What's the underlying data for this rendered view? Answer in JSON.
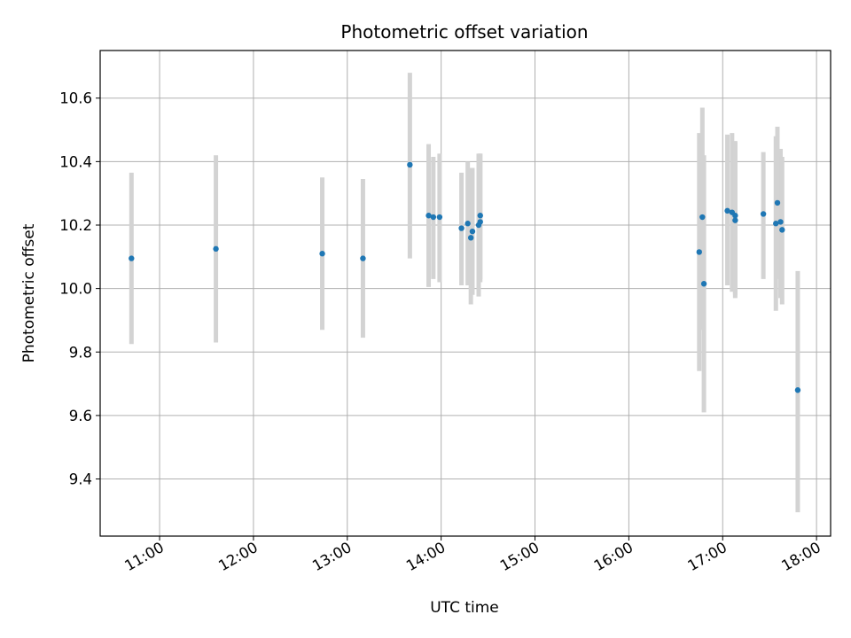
{
  "chart_data": {
    "type": "scatter",
    "title": "Photometric offset variation",
    "xlabel": "UTC time",
    "ylabel": "Photometric offset",
    "x_ticks": [
      "11:00",
      "12:00",
      "13:00",
      "14:00",
      "15:00",
      "16:00",
      "17:00",
      "18:00"
    ],
    "y_ticks": [
      "9.4",
      "9.6",
      "9.8",
      "10.0",
      "10.2",
      "10.4",
      "10.6"
    ],
    "xlim": [
      "10:22",
      "18:09"
    ],
    "ylim": [
      9.22,
      10.75
    ],
    "grid": true,
    "colors": {
      "points": "#1f77b4",
      "errorbars": "#d3d3d3",
      "grid": "#b0b0b0"
    },
    "points": [
      {
        "x": "10:42",
        "y": 10.095,
        "ylo": 9.825,
        "yhi": 10.365
      },
      {
        "x": "11:36",
        "y": 10.125,
        "ylo": 9.83,
        "yhi": 10.42
      },
      {
        "x": "12:44",
        "y": 10.11,
        "ylo": 9.87,
        "yhi": 10.35
      },
      {
        "x": "13:10",
        "y": 10.095,
        "ylo": 9.845,
        "yhi": 10.345
      },
      {
        "x": "13:40",
        "y": 10.39,
        "ylo": 10.095,
        "yhi": 10.68
      },
      {
        "x": "13:52",
        "y": 10.23,
        "ylo": 10.005,
        "yhi": 10.455
      },
      {
        "x": "13:55",
        "y": 10.225,
        "ylo": 10.03,
        "yhi": 10.415
      },
      {
        "x": "13:59",
        "y": 10.225,
        "ylo": 10.02,
        "yhi": 10.425
      },
      {
        "x": "14:13",
        "y": 10.19,
        "ylo": 10.01,
        "yhi": 10.365
      },
      {
        "x": "14:17",
        "y": 10.205,
        "ylo": 10.01,
        "yhi": 10.4
      },
      {
        "x": "14:19",
        "y": 10.16,
        "ylo": 9.95,
        "yhi": 10.38
      },
      {
        "x": "14:20",
        "y": 10.18,
        "ylo": 9.98,
        "yhi": 10.38
      },
      {
        "x": "14:24",
        "y": 10.2,
        "ylo": 9.975,
        "yhi": 10.425
      },
      {
        "x": "14:25",
        "y": 10.21,
        "ylo": 10.02,
        "yhi": 10.425
      },
      {
        "x": "14:25",
        "y": 10.23,
        "ylo": 10.03,
        "yhi": 10.425
      },
      {
        "x": "16:45",
        "y": 10.115,
        "ylo": 9.74,
        "yhi": 10.49
      },
      {
        "x": "16:47",
        "y": 10.225,
        "ylo": 9.87,
        "yhi": 10.57
      },
      {
        "x": "16:48",
        "y": 10.015,
        "ylo": 9.61,
        "yhi": 10.42
      },
      {
        "x": "17:03",
        "y": 10.245,
        "ylo": 10.01,
        "yhi": 10.485
      },
      {
        "x": "17:06",
        "y": 10.24,
        "ylo": 9.99,
        "yhi": 10.49
      },
      {
        "x": "17:08",
        "y": 10.215,
        "ylo": 9.98,
        "yhi": 10.46
      },
      {
        "x": "17:08",
        "y": 10.23,
        "ylo": 9.97,
        "yhi": 10.465
      },
      {
        "x": "17:26",
        "y": 10.235,
        "ylo": 10.03,
        "yhi": 10.43
      },
      {
        "x": "17:34",
        "y": 10.205,
        "ylo": 9.93,
        "yhi": 10.48
      },
      {
        "x": "17:35",
        "y": 10.27,
        "ylo": 10.03,
        "yhi": 10.51
      },
      {
        "x": "17:37",
        "y": 10.21,
        "ylo": 9.97,
        "yhi": 10.44
      },
      {
        "x": "17:38",
        "y": 10.185,
        "ylo": 9.95,
        "yhi": 10.415
      },
      {
        "x": "17:48",
        "y": 9.68,
        "ylo": 9.295,
        "yhi": 10.055
      }
    ]
  }
}
